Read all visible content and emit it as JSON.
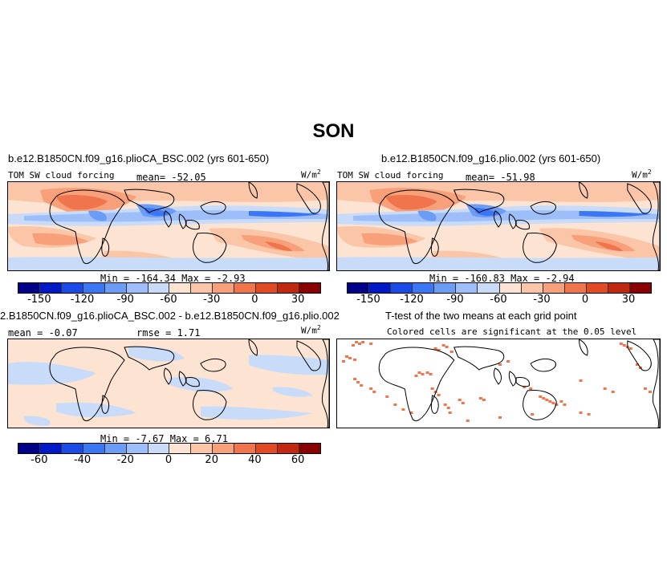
{
  "figure": {
    "title": "SON"
  },
  "panels": [
    {
      "title": "b.e12.B1850CN.f09_g16.plioCA_BSC.002 (yrs 601-650)",
      "var": "TOM  SW  cloud  forcing",
      "mean": "mean= -52.05",
      "units": "W/m",
      "units_sup": "2",
      "minmax": "Min  =  -164.34  Max  =   -2.93"
    },
    {
      "title": "b.e12.B1850CN.f09_g16.plio.002 (yrs 601-650)",
      "var": "TOM  SW  cloud  forcing",
      "mean": "mean= -51.98",
      "units": "W/m",
      "units_sup": "2",
      "minmax": "Min  =  -160.83  Max  =   -2.94"
    },
    {
      "title": "2.B1850CN.f09_g16.plioCA_BSC.002 - b.e12.B1850CN.f09_g16.plio.002",
      "mean": "mean  =  -0.07",
      "rmse": "rmse  =    1.71",
      "units": "W/m",
      "units_sup": "2",
      "minmax": "Min  =   -7.67  Max  =    6.71"
    },
    {
      "title": "T-test of the two means at each grid point",
      "subtitle": "Colored cells are significant at the 0.05 level"
    }
  ],
  "colorbars": {
    "full": {
      "ticks": [
        "-150",
        "-120",
        "-90",
        "-60",
        "-30",
        "0",
        "30"
      ],
      "colors": [
        "#00008b",
        "#0019c8",
        "#1a4be8",
        "#3b76f4",
        "#6b9cf6",
        "#9dbef8",
        "#c8dcf9",
        "#fde3d2",
        "#fbc6a8",
        "#f7a07a",
        "#f1754c",
        "#e24a24",
        "#c22810",
        "#8b0000"
      ]
    },
    "diff": {
      "ticks": [
        "-60",
        "-40",
        "-20",
        "0",
        "20",
        "40",
        "60"
      ],
      "colors": [
        "#00008b",
        "#0019c8",
        "#1a4be8",
        "#3b76f4",
        "#6b9cf6",
        "#9dbef8",
        "#c8dcf9",
        "#fde3d2",
        "#fbc6a8",
        "#f7a07a",
        "#f1754c",
        "#e24a24",
        "#c22810",
        "#8b0000"
      ]
    }
  }
}
